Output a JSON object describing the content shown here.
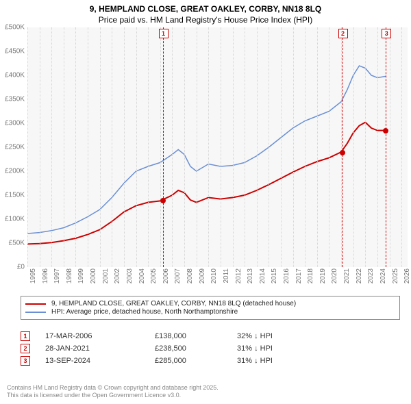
{
  "title": {
    "line1": "9, HEMPLAND CLOSE, GREAT OAKLEY, CORBY, NN18 8LQ",
    "line2": "Price paid vs. HM Land Registry's House Price Index (HPI)"
  },
  "chart": {
    "type": "line",
    "background_color": "#f7f7f7",
    "grid_color": "#d5d5d5",
    "x_years": [
      1995,
      1996,
      1997,
      1998,
      1999,
      2000,
      2001,
      2002,
      2003,
      2004,
      2005,
      2006,
      2007,
      2008,
      2009,
      2010,
      2011,
      2012,
      2013,
      2014,
      2015,
      2016,
      2017,
      2018,
      2019,
      2020,
      2021,
      2022,
      2023,
      2024,
      2025,
      2026
    ],
    "y_ticks": [
      0,
      50000,
      100000,
      150000,
      200000,
      250000,
      300000,
      350000,
      400000,
      450000,
      500000
    ],
    "y_labels": [
      "£0",
      "£50K",
      "£100K",
      "£150K",
      "£200K",
      "£250K",
      "£300K",
      "£350K",
      "£400K",
      "£450K",
      "£500K"
    ],
    "ylim": [
      0,
      500000
    ],
    "xlim": [
      1995,
      2026.5
    ],
    "series": {
      "price_paid": {
        "color": "#cc0000",
        "width": 2,
        "data": [
          [
            1995,
            48000
          ],
          [
            1996,
            49000
          ],
          [
            1997,
            51000
          ],
          [
            1998,
            55000
          ],
          [
            1999,
            60000
          ],
          [
            2000,
            68000
          ],
          [
            2001,
            78000
          ],
          [
            2002,
            95000
          ],
          [
            2003,
            115000
          ],
          [
            2004,
            128000
          ],
          [
            2005,
            135000
          ],
          [
            2006,
            138000
          ],
          [
            2007,
            150000
          ],
          [
            2007.5,
            160000
          ],
          [
            2008,
            155000
          ],
          [
            2008.5,
            140000
          ],
          [
            2009,
            135000
          ],
          [
            2010,
            145000
          ],
          [
            2011,
            142000
          ],
          [
            2012,
            145000
          ],
          [
            2013,
            150000
          ],
          [
            2014,
            160000
          ],
          [
            2015,
            172000
          ],
          [
            2016,
            185000
          ],
          [
            2017,
            198000
          ],
          [
            2018,
            210000
          ],
          [
            2019,
            220000
          ],
          [
            2020,
            228000
          ],
          [
            2021,
            240000
          ],
          [
            2021.5,
            258000
          ],
          [
            2022,
            280000
          ],
          [
            2022.5,
            295000
          ],
          [
            2023,
            302000
          ],
          [
            2023.5,
            290000
          ],
          [
            2024,
            285000
          ],
          [
            2024.7,
            285000
          ]
        ]
      },
      "hpi": {
        "color": "#6a8fd4",
        "width": 1.5,
        "data": [
          [
            1995,
            70000
          ],
          [
            1996,
            72000
          ],
          [
            1997,
            76000
          ],
          [
            1998,
            82000
          ],
          [
            1999,
            92000
          ],
          [
            2000,
            105000
          ],
          [
            2001,
            120000
          ],
          [
            2002,
            145000
          ],
          [
            2003,
            175000
          ],
          [
            2004,
            200000
          ],
          [
            2005,
            210000
          ],
          [
            2006,
            218000
          ],
          [
            2007,
            235000
          ],
          [
            2007.5,
            245000
          ],
          [
            2008,
            235000
          ],
          [
            2008.5,
            210000
          ],
          [
            2009,
            200000
          ],
          [
            2010,
            215000
          ],
          [
            2011,
            210000
          ],
          [
            2012,
            212000
          ],
          [
            2013,
            218000
          ],
          [
            2014,
            232000
          ],
          [
            2015,
            250000
          ],
          [
            2016,
            270000
          ],
          [
            2017,
            290000
          ],
          [
            2018,
            305000
          ],
          [
            2019,
            315000
          ],
          [
            2020,
            325000
          ],
          [
            2021,
            345000
          ],
          [
            2021.5,
            370000
          ],
          [
            2022,
            400000
          ],
          [
            2022.5,
            420000
          ],
          [
            2023,
            415000
          ],
          [
            2023.5,
            400000
          ],
          [
            2024,
            395000
          ],
          [
            2024.7,
            398000
          ]
        ]
      }
    },
    "event_markers": [
      {
        "n": "1",
        "x": 2006.21,
        "y": 138000
      },
      {
        "n": "2",
        "x": 2021.08,
        "y": 238500
      },
      {
        "n": "3",
        "x": 2024.7,
        "y": 285000
      }
    ]
  },
  "legend": {
    "items": [
      {
        "color": "#cc0000",
        "label": "9, HEMPLAND CLOSE, GREAT OAKLEY, CORBY, NN18 8LQ (detached house)"
      },
      {
        "color": "#6a8fd4",
        "label": "HPI: Average price, detached house, North Northamptonshire"
      }
    ]
  },
  "events": [
    {
      "n": "1",
      "date": "17-MAR-2006",
      "price": "£138,000",
      "diff": "32% ↓ HPI"
    },
    {
      "n": "2",
      "date": "28-JAN-2021",
      "price": "£238,500",
      "diff": "31% ↓ HPI"
    },
    {
      "n": "3",
      "date": "13-SEP-2024",
      "price": "£285,000",
      "diff": "31% ↓ HPI"
    }
  ],
  "footer": {
    "line1": "Contains HM Land Registry data © Crown copyright and database right 2025.",
    "line2": "This data is licensed under the Open Government Licence v3.0."
  }
}
